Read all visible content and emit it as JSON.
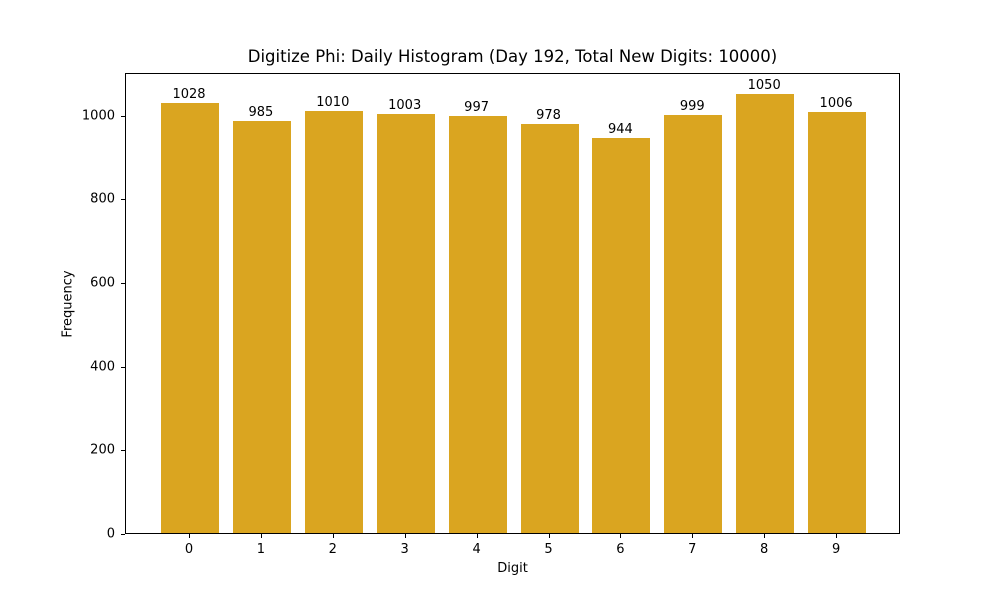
{
  "chart_data": {
    "type": "bar",
    "title": "Digitize Phi: Daily Histogram (Day 192, Total New Digits: 10000)",
    "xlabel": "Digit",
    "ylabel": "Frequency",
    "categories": [
      "0",
      "1",
      "2",
      "3",
      "4",
      "5",
      "6",
      "7",
      "8",
      "9"
    ],
    "values": [
      1028,
      985,
      1010,
      1003,
      997,
      978,
      944,
      999,
      1050,
      1006
    ],
    "data_labels": [
      "1028",
      "985",
      "1010",
      "1003",
      "997",
      "978",
      "944",
      "999",
      "1050",
      "1006"
    ],
    "yticks": [
      0,
      200,
      400,
      600,
      800,
      1000
    ],
    "ylim": [
      0,
      1102.5
    ],
    "grid": false,
    "legend": null,
    "bar_color": "#DAA520"
  }
}
